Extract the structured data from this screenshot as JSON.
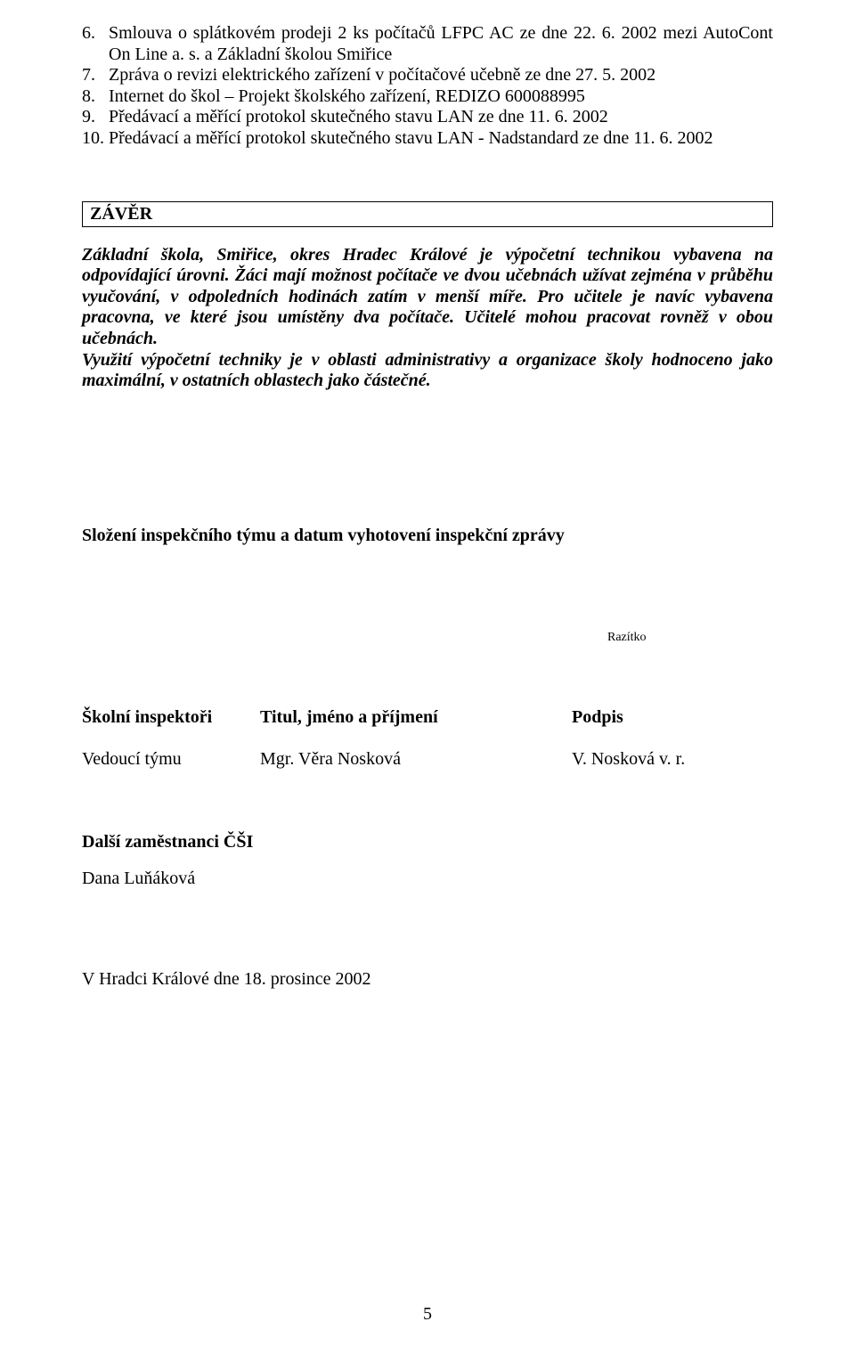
{
  "list": {
    "items": [
      {
        "num": "6.",
        "text": "Smlouva o splátkovém prodeji 2 ks počítačů LFPC AC ze dne 22. 6. 2002 mezi AutoCont On Line a. s. a Základní školou Smiřice"
      },
      {
        "num": "7.",
        "text": "Zpráva o revizi elektrického zařízení v počítačové učebně ze dne 27. 5. 2002"
      },
      {
        "num": "8.",
        "text": "Internet do škol – Projekt školského zařízení, REDIZO 600088995"
      },
      {
        "num": "9.",
        "text": "Předávací a měřící protokol skutečného stavu LAN ze dne 11. 6. 2002"
      },
      {
        "num": "10.",
        "text": "Předávací a měřící protokol skutečného stavu LAN - Nadstandard ze dne 11. 6. 2002"
      }
    ]
  },
  "zaver": {
    "heading": "ZÁVĚR",
    "p1": "Základní škola, Smiřice, okres Hradec Králové je výpočetní technikou vybavena na odpovídající úrovni. Žáci mají možnost počítače ve dvou učebnách užívat zejména v průběhu vyučování, v odpoledních hodinách zatím  v menší míře. Pro učitele je navíc vybavena pracovna, ve které jsou umístěny dva počítače. Učitelé mohou pracovat rovněž v obou učebnách.",
    "p2": "Využití výpočetní techniky je v oblasti administrativy a organizace školy hodnoceno jako maximální, v ostatních oblastech jako částečné."
  },
  "section_heading": "Složení inspekčního týmu a datum vyhotovení inspekční zprávy",
  "razitko": "Razítko",
  "sig_table": {
    "header": {
      "c1": "Školní inspektoři",
      "c2": "Titul, jméno a příjmení",
      "c3": "Podpis"
    },
    "row": {
      "c1": "Vedoucí týmu",
      "c2": "Mgr. Věra Nosková",
      "c3": "V. Nosková v. r."
    }
  },
  "employees": {
    "label": "Další zaměstnanci ČŠI",
    "name": "Dana Luňáková"
  },
  "date_line": "V Hradci Králové dne 18. prosince 2002",
  "page_number": "5"
}
